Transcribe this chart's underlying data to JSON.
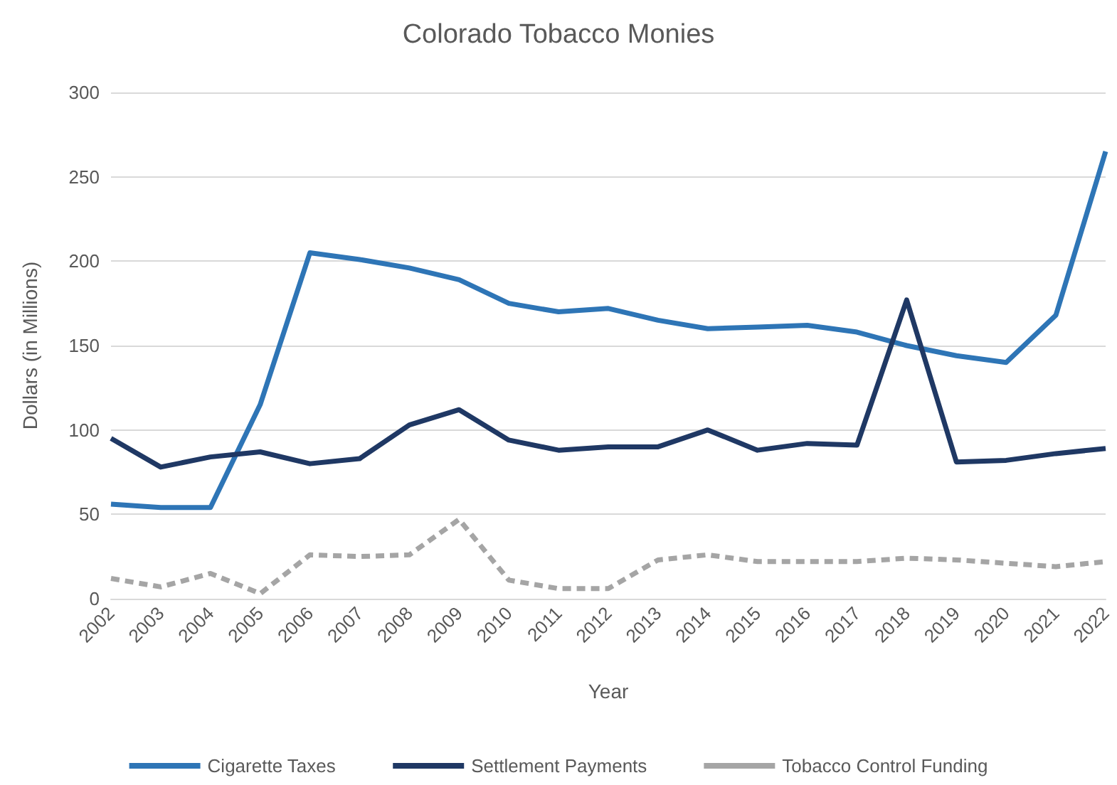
{
  "chart_data": {
    "type": "line",
    "title": "Colorado Tobacco Monies",
    "xlabel": "Year",
    "ylabel": "Dollars (in Millions)",
    "categories": [
      "2002",
      "2003",
      "2004",
      "2005",
      "2006",
      "2007",
      "2008",
      "2009",
      "2010",
      "2011",
      "2012",
      "2013",
      "2014",
      "2015",
      "2016",
      "2017",
      "2018",
      "2019",
      "2020",
      "2021",
      "2022"
    ],
    "series": [
      {
        "name": "Cigarette Taxes",
        "color": "#2e75b6",
        "line_style": "solid",
        "values": [
          56,
          54,
          54,
          115,
          205,
          201,
          196,
          189,
          175,
          170,
          172,
          165,
          160,
          161,
          162,
          158,
          150,
          144,
          140,
          168,
          265
        ]
      },
      {
        "name": "Settlement Payments",
        "color": "#1f3864",
        "line_style": "solid",
        "values": [
          95,
          78,
          84,
          87,
          80,
          83,
          103,
          112,
          94,
          88,
          90,
          90,
          100,
          88,
          92,
          91,
          177,
          81,
          82,
          86,
          89
        ]
      },
      {
        "name": "Tobacco Control Funding",
        "color": "#a5a5a5",
        "line_style": "dashed",
        "values": [
          12,
          7,
          15,
          3,
          26,
          25,
          26,
          47,
          11,
          6,
          6,
          23,
          26,
          22,
          22,
          22,
          24,
          23,
          21,
          19,
          22
        ]
      }
    ],
    "ylim": [
      0,
      300
    ],
    "yticks": [
      0,
      50,
      100,
      150,
      200,
      250,
      300
    ],
    "grid": "y",
    "legend": "bottom",
    "marker": "none"
  }
}
